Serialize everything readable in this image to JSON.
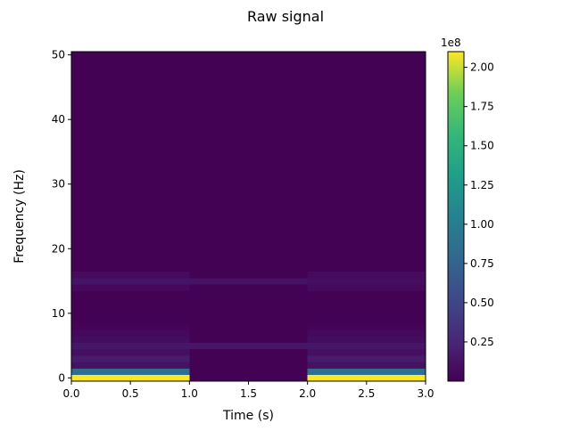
{
  "chart_data": {
    "type": "heatmap",
    "title": "Raw signal",
    "xlabel": "Time (s)",
    "ylabel": "Frequency (Hz)",
    "xlim": [
      0,
      3
    ],
    "ylim": [
      -0.5,
      50.5
    ],
    "x_ticks": [
      "0.0",
      "0.5",
      "1.0",
      "1.5",
      "2.0",
      "2.5",
      "3.0"
    ],
    "y_ticks": [
      "0",
      "10",
      "20",
      "30",
      "40",
      "50"
    ],
    "colormap": "viridis",
    "colorbar": {
      "offset_label": "1e8",
      "range": [
        0,
        2.1
      ],
      "ticks": [
        "0.25",
        "0.50",
        "0.75",
        "1.00",
        "1.25",
        "1.50",
        "1.75",
        "2.00"
      ]
    },
    "time_bins": [
      {
        "t_start": 0,
        "t_end": 1
      },
      {
        "t_start": 1,
        "t_end": 2
      },
      {
        "t_start": 2,
        "t_end": 3
      }
    ],
    "frequency_range": [
      0,
      50
    ],
    "background_value": 0.005,
    "cells": [
      {
        "time_bin": 0,
        "freq": 0,
        "value": 2.1
      },
      {
        "time_bin": 0,
        "freq": 1,
        "value": 0.85
      },
      {
        "time_bin": 0,
        "freq": 2,
        "value": 0.12
      },
      {
        "time_bin": 0,
        "freq": 3,
        "value": 0.18
      },
      {
        "time_bin": 0,
        "freq": 4,
        "value": 0.1
      },
      {
        "time_bin": 0,
        "freq": 5,
        "value": 0.15
      },
      {
        "time_bin": 0,
        "freq": 6,
        "value": 0.08
      },
      {
        "time_bin": 0,
        "freq": 7,
        "value": 0.05
      },
      {
        "time_bin": 0,
        "freq": 8,
        "value": 0.03
      },
      {
        "time_bin": 0,
        "freq": 14,
        "value": 0.05
      },
      {
        "time_bin": 0,
        "freq": 15,
        "value": 0.13
      },
      {
        "time_bin": 0,
        "freq": 16,
        "value": 0.07
      },
      {
        "time_bin": 1,
        "freq": 5,
        "value": 0.15
      },
      {
        "time_bin": 1,
        "freq": 15,
        "value": 0.12
      },
      {
        "time_bin": 2,
        "freq": 0,
        "value": 2.1
      },
      {
        "time_bin": 2,
        "freq": 1,
        "value": 0.85
      },
      {
        "time_bin": 2,
        "freq": 2,
        "value": 0.12
      },
      {
        "time_bin": 2,
        "freq": 3,
        "value": 0.18
      },
      {
        "time_bin": 2,
        "freq": 4,
        "value": 0.1
      },
      {
        "time_bin": 2,
        "freq": 5,
        "value": 0.15
      },
      {
        "time_bin": 2,
        "freq": 6,
        "value": 0.08
      },
      {
        "time_bin": 2,
        "freq": 7,
        "value": 0.05
      },
      {
        "time_bin": 2,
        "freq": 8,
        "value": 0.03
      },
      {
        "time_bin": 2,
        "freq": 14,
        "value": 0.06
      },
      {
        "time_bin": 2,
        "freq": 15,
        "value": 0.09
      },
      {
        "time_bin": 2,
        "freq": 16,
        "value": 0.07
      }
    ],
    "grid": false,
    "legend": "none"
  }
}
